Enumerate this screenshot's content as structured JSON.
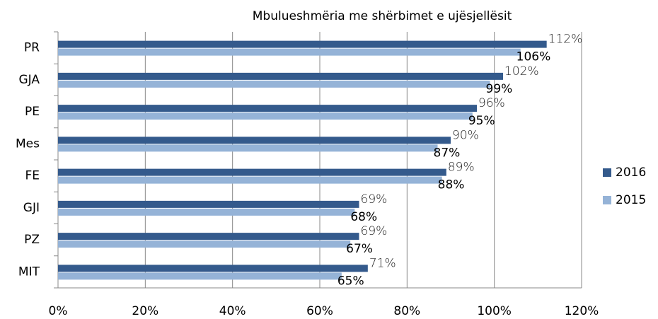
{
  "chart_data": {
    "type": "bar",
    "orientation": "horizontal",
    "title": "Mbulueshmëria me shërbimet e ujësjellësit",
    "categories": [
      "PR",
      "GJA",
      "PE",
      "Mes",
      "FE",
      "GJI",
      "PZ",
      "MIT"
    ],
    "series": [
      {
        "name": "2016",
        "color": "#345a8c",
        "values": [
          112,
          102,
          96,
          90,
          89,
          69,
          69,
          71
        ],
        "value_labels": [
          "112%",
          "102%",
          "96%",
          "90%",
          "89%",
          "69%",
          "69%",
          "71%"
        ]
      },
      {
        "name": "2015",
        "color": "#95b3d7",
        "values": [
          106,
          99,
          95,
          87,
          88,
          68,
          67,
          65
        ],
        "value_labels": [
          "106%",
          "99%",
          "95%",
          "87%",
          "88%",
          "68%",
          "67%",
          "65%"
        ]
      }
    ],
    "xlim": [
      0,
      120
    ],
    "xticks": [
      {
        "value": 0,
        "label": "0%"
      },
      {
        "value": 20,
        "label": "20%"
      },
      {
        "value": 40,
        "label": "40%"
      },
      {
        "value": 60,
        "label": "60%"
      },
      {
        "value": 80,
        "label": "80%"
      },
      {
        "value": 100,
        "label": "100%"
      },
      {
        "value": 120,
        "label": "120%"
      }
    ],
    "grid": true,
    "legend": "right"
  }
}
